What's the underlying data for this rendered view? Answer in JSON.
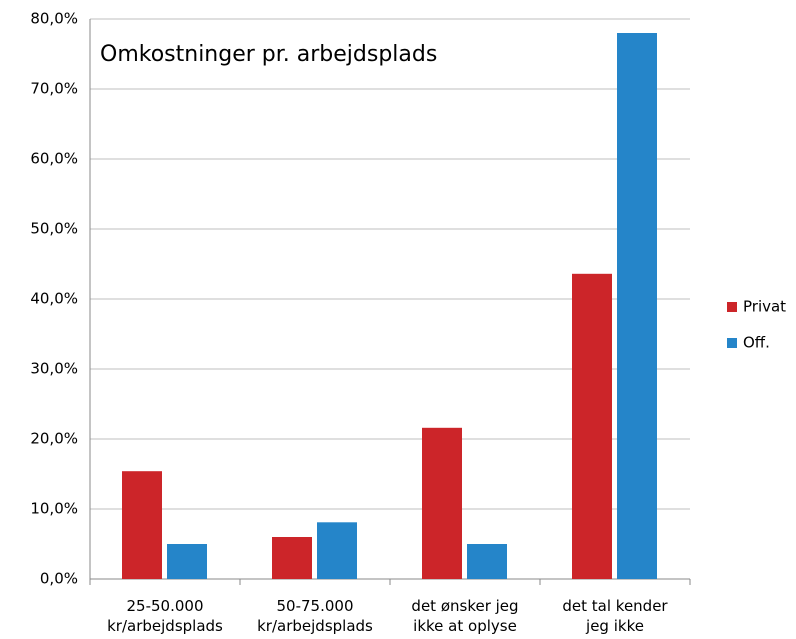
{
  "chart_data": {
    "type": "bar",
    "title": "Omkostninger pr. arbejdsplads",
    "categories": [
      "25-50.000\nkr/arbejdsplads",
      "50-75.000\nkr/arbejdsplads",
      "det ønsker jeg\nikke at oplyse",
      "det tal kender\njeg ikke"
    ],
    "series": [
      {
        "name": "Privat",
        "color": "#cc2529",
        "values": [
          15.4,
          6.0,
          21.6,
          43.6
        ]
      },
      {
        "name": "Off.",
        "color": "#2585c9",
        "values": [
          5.0,
          8.1,
          5.0,
          78.0
        ]
      }
    ],
    "ylim": [
      0,
      80
    ],
    "yticks": [
      {
        "value": 0,
        "label": "0,0%"
      },
      {
        "value": 10,
        "label": "10,0%"
      },
      {
        "value": 20,
        "label": "20,0%"
      },
      {
        "value": 30,
        "label": "30,0%"
      },
      {
        "value": 40,
        "label": "40,0%"
      },
      {
        "value": 50,
        "label": "50,0%"
      },
      {
        "value": 60,
        "label": "60,0%"
      },
      {
        "value": 70,
        "label": "70,0%"
      },
      {
        "value": 80,
        "label": "80,0%"
      }
    ],
    "grid": true,
    "legend": "right"
  }
}
